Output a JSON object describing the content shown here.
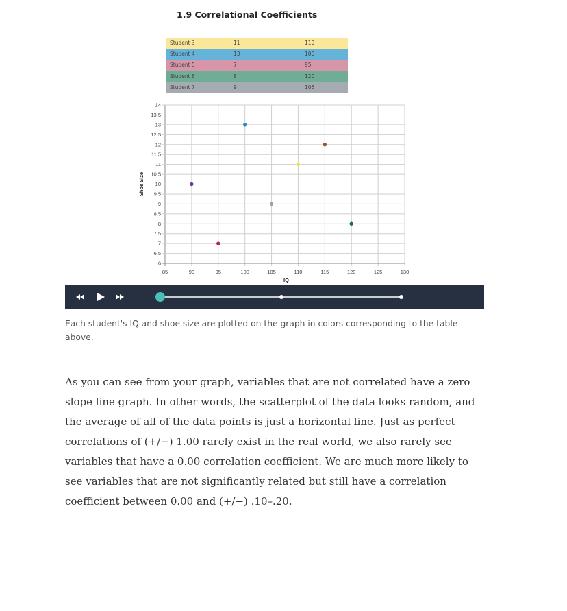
{
  "header": {
    "title": "1.9 Correlational Coefficients"
  },
  "table": {
    "rows": [
      {
        "name": "Student 3",
        "shoe": "11",
        "iq": "110",
        "color": "#fbe79a"
      },
      {
        "name": "Student 4",
        "shoe": "13",
        "iq": "100",
        "color": "#66b3d9"
      },
      {
        "name": "Student 5",
        "shoe": "7",
        "iq": "95",
        "color": "#d695a8"
      },
      {
        "name": "Student 6",
        "shoe": "8",
        "iq": "120",
        "color": "#6fad97"
      },
      {
        "name": "Student 7",
        "shoe": "9",
        "iq": "105",
        "color": "#a6abb1"
      }
    ]
  },
  "chart_data": {
    "type": "scatter",
    "xlabel": "IQ",
    "ylabel": "Shoe Size",
    "xlim": [
      85,
      130
    ],
    "ylim": [
      6,
      14
    ],
    "xticks": [
      85,
      90,
      95,
      100,
      105,
      110,
      115,
      120,
      125,
      130
    ],
    "yticks": [
      6,
      6.5,
      7,
      7.5,
      8,
      8.5,
      9,
      9.5,
      10,
      10.5,
      11,
      11.5,
      12,
      12.5,
      13,
      13.5,
      14
    ],
    "grid": true,
    "points": [
      {
        "x": 90,
        "y": 10,
        "color": "#6a3d9a"
      },
      {
        "x": 95,
        "y": 7,
        "color": "#b0246a"
      },
      {
        "x": 100,
        "y": 13,
        "color": "#2b8cbe"
      },
      {
        "x": 105,
        "y": 9,
        "color": "#99a3ad"
      },
      {
        "x": 110,
        "y": 11,
        "color": "#f5e23a"
      },
      {
        "x": 115,
        "y": 12,
        "color": "#a0522d"
      },
      {
        "x": 120,
        "y": 8,
        "color": "#1b6e4a"
      }
    ]
  },
  "player": {
    "rewind_icon": "rewind-icon",
    "play_icon": "play-icon",
    "forward_icon": "fast-forward-icon",
    "accent": "#4bbfb7",
    "progress": 0
  },
  "caption": "Each student's IQ and shoe size are plotted on the graph in colors corresponding to the table above.",
  "body_text": "As you can see from your graph, variables that are not correlated have a zero slope line graph. In other words, the scatterplot of the data looks random, and the average of all of the data points is just a horizontal line. Just as perfect correlations of (+/−) 1.00 rarely exist in the real world, we also rarely see variables that have a 0.00 correlation coefficient. We are much more likely to see variables that are not significantly related but still have a correlation coefficient between 0.00 and (+/−) .10–.20."
}
